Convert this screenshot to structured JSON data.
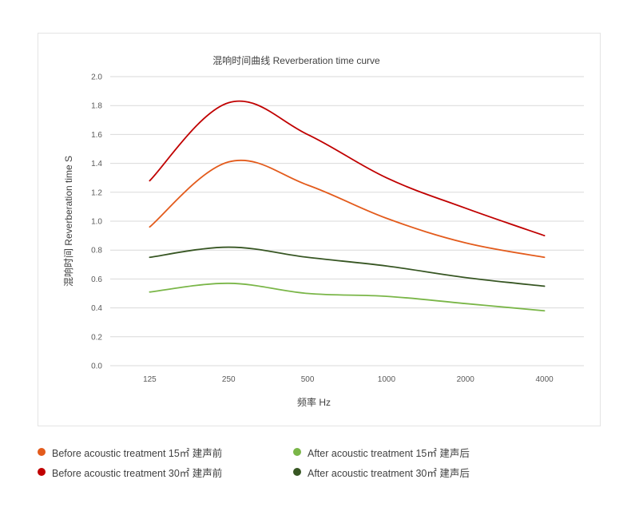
{
  "chart_data": {
    "type": "line",
    "title": "混响时间曲线 Reverberation time curve",
    "xlabel": "频率 Hz",
    "ylabel": "混响时间 Reverberation time  S",
    "categories": [
      "125",
      "250",
      "500",
      "1000",
      "2000",
      "4000"
    ],
    "ylim": [
      0,
      2.0
    ],
    "yticks": [
      "0.0",
      "0.2",
      "0.4",
      "0.6",
      "0.8",
      "1.0",
      "1.2",
      "1.4",
      "1.6",
      "1.8",
      "2.0"
    ],
    "grid": true,
    "legend_position": "bottom",
    "series": [
      {
        "name": "Before acoustic treatment 15㎡   建声前",
        "color": "#e35b1c",
        "values": [
          0.96,
          1.41,
          1.25,
          1.02,
          0.85,
          0.75
        ]
      },
      {
        "name": "After acoustic treatment 15㎡   建声后",
        "color": "#7ab648",
        "values": [
          0.51,
          0.57,
          0.5,
          0.48,
          0.43,
          0.38
        ]
      },
      {
        "name": "Before acoustic treatment 30㎡   建声前",
        "color": "#c00000",
        "values": [
          1.28,
          1.82,
          1.6,
          1.3,
          1.09,
          0.9
        ]
      },
      {
        "name": "After acoustic treatment 30㎡   建声后",
        "color": "#375623",
        "values": [
          0.75,
          0.82,
          0.75,
          0.69,
          0.61,
          0.55
        ]
      }
    ]
  }
}
